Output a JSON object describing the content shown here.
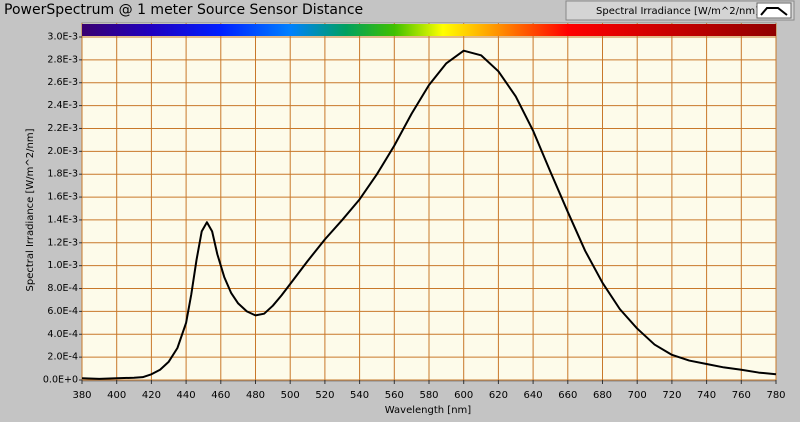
{
  "chart_data": {
    "type": "line",
    "title": "PowerSpectrum @ 1 meter Source Sensor Distance",
    "x_label": "Wavelength [nm]",
    "y_label": "Spectral Irradiance [W/m^2/nm]",
    "x": [
      380,
      390,
      400,
      410,
      415,
      420,
      425,
      430,
      435,
      440,
      443,
      446,
      449,
      452,
      455,
      458,
      462,
      466,
      470,
      475,
      480,
      485,
      490,
      495,
      500,
      510,
      520,
      530,
      540,
      550,
      560,
      570,
      580,
      590,
      600,
      610,
      620,
      630,
      640,
      650,
      660,
      670,
      680,
      690,
      700,
      710,
      720,
      730,
      740,
      750,
      760,
      770,
      780
    ],
    "series": [
      {
        "name": "Spectral Irradiance [W/m^2/nm]",
        "color": "#000000",
        "values": [
          1.5e-05,
          1e-05,
          1.5e-05,
          2e-05,
          2.5e-05,
          5e-05,
          9e-05,
          0.00016,
          0.00028,
          0.0005,
          0.00075,
          0.00105,
          0.0013,
          0.00138,
          0.0013,
          0.0011,
          0.0009,
          0.00076,
          0.00067,
          0.0006,
          0.000565,
          0.00058,
          0.00065,
          0.00074,
          0.00084,
          0.00104,
          0.00123,
          0.0014,
          0.00158,
          0.0018,
          0.00205,
          0.00233,
          0.00258,
          0.00277,
          0.00288,
          0.00284,
          0.0027,
          0.00248,
          0.00218,
          0.00182,
          0.00147,
          0.00113,
          0.00085,
          0.00062,
          0.00045,
          0.00031,
          0.00022,
          0.00017,
          0.00014,
          0.00011,
          9e-05,
          6.5e-05,
          5e-05
        ]
      }
    ],
    "xlim": [
      380,
      780
    ],
    "xticks": [
      380,
      400,
      420,
      440,
      460,
      480,
      500,
      520,
      540,
      560,
      580,
      600,
      620,
      640,
      660,
      680,
      700,
      720,
      740,
      760,
      780
    ],
    "ylim": [
      0,
      0.003
    ],
    "yticks": [
      {
        "value": 0,
        "label": "0.0E+0"
      },
      {
        "value": 0.0002,
        "label": "2.0E-4"
      },
      {
        "value": 0.0004,
        "label": "4.0E-4"
      },
      {
        "value": 0.0006,
        "label": "6.0E-4"
      },
      {
        "value": 0.0008,
        "label": "8.0E-4"
      },
      {
        "value": 0.001,
        "label": "1.0E-3"
      },
      {
        "value": 0.0012,
        "label": "1.2E-3"
      },
      {
        "value": 0.0014,
        "label": "1.4E-3"
      },
      {
        "value": 0.0016,
        "label": "1.6E-3"
      },
      {
        "value": 0.0018,
        "label": "1.8E-3"
      },
      {
        "value": 0.002,
        "label": "2.0E-3"
      },
      {
        "value": 0.0022,
        "label": "2.2E-3"
      },
      {
        "value": 0.0024,
        "label": "2.4E-3"
      },
      {
        "value": 0.0026,
        "label": "2.6E-3"
      },
      {
        "value": 0.0028,
        "label": "2.8E-3"
      },
      {
        "value": 0.003,
        "label": "3.0E-3"
      }
    ],
    "grid": true,
    "legend": "top-right"
  }
}
